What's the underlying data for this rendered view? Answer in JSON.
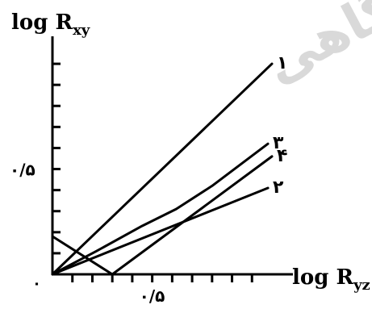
{
  "chart_data": {
    "type": "line",
    "ylabel_main": "log R",
    "ylabel_sub": "xy",
    "xlabel_main": "log R",
    "xlabel_sub": "yz",
    "origin_label": "٠",
    "xlim": [
      0,
      1.1
    ],
    "ylim": [
      0,
      1.1
    ],
    "x_ticks": [
      0.1,
      0.2,
      0.3,
      0.4,
      0.5,
      0.6,
      0.7,
      0.8,
      0.9,
      1.0
    ],
    "y_ticks": [
      0.1,
      0.2,
      0.3,
      0.4,
      0.5,
      0.6,
      0.7,
      0.8,
      0.9,
      1.0
    ],
    "x_tick_label": {
      "value": 0.5,
      "text": "٠/۵"
    },
    "y_tick_label": {
      "value": 0.5,
      "text": "٠/۵"
    },
    "grid": false,
    "series": [
      {
        "name": "۱",
        "x": [
          0,
          1.1
        ],
        "y": [
          0,
          1.0
        ]
      },
      {
        "name": "۳",
        "x": [
          0,
          0.22,
          0.45,
          0.62,
          0.8,
          1.08
        ],
        "y": [
          0,
          0.11,
          0.23,
          0.31,
          0.42,
          0.62
        ]
      },
      {
        "name": "۴",
        "x": [
          0.3,
          1.1
        ],
        "y": [
          0,
          0.56
        ]
      },
      {
        "name": "۲",
        "x": [
          0,
          1.08
        ],
        "y": [
          0,
          0.41
        ]
      },
      {
        "name": "",
        "x": [
          0,
          0.3
        ],
        "y": [
          0.18,
          0
        ]
      }
    ]
  },
  "watermark": {
    "text": "دانشگاهی"
  }
}
